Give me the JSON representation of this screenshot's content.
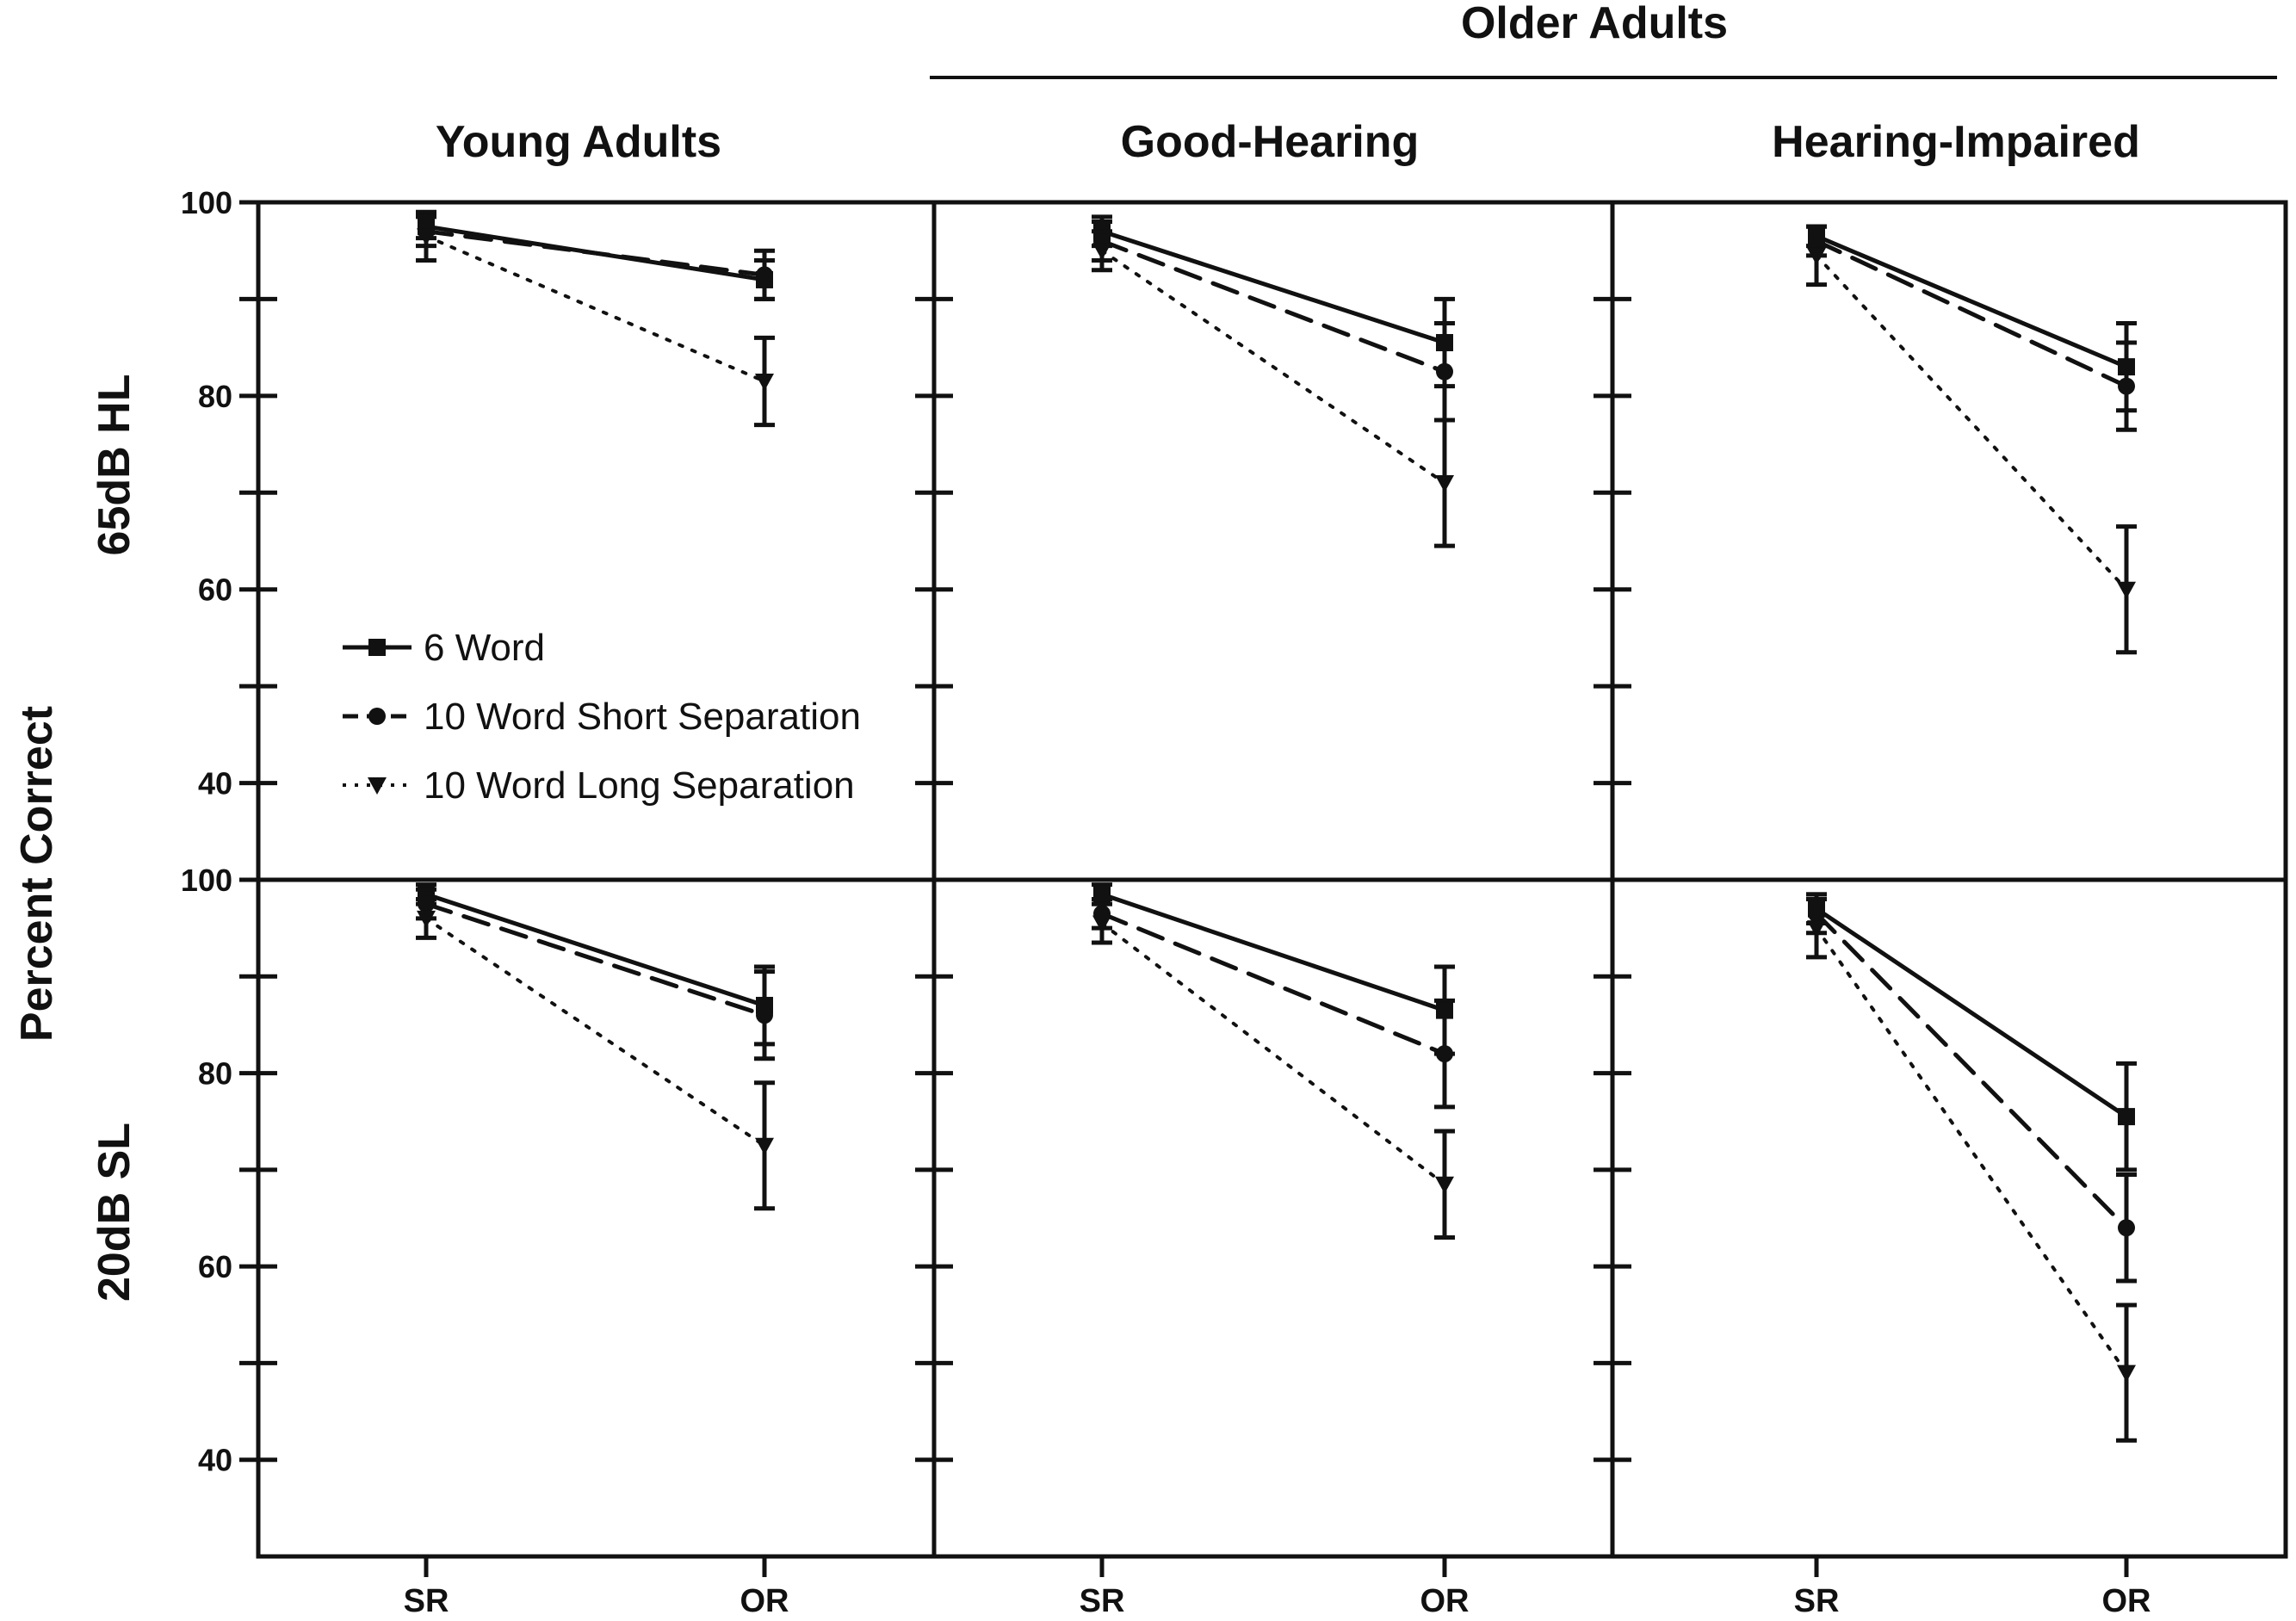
{
  "chart_data": {
    "type": "line",
    "y_axis_label": "Percent Correct",
    "ylim": [
      30,
      100
    ],
    "y_ticks": [
      40,
      60,
      80,
      100
    ],
    "x_categories": [
      "SR",
      "OR"
    ],
    "group_header": "Older Adults",
    "column_titles": [
      "Young Adults",
      "Good-Hearing",
      "Hearing-Impaired"
    ],
    "row_titles": [
      "65dB HL",
      "20dB SL"
    ],
    "legend": {
      "placement": "inside top-left panel, lower-left",
      "entries": [
        "6 Word",
        "10 Word Short Separation",
        "10 Word Long Separation"
      ]
    },
    "series_styles": [
      {
        "name": "6 Word",
        "line": "solid",
        "marker": "square"
      },
      {
        "name": "10 Word Short Separation",
        "line": "dashed",
        "marker": "circle"
      },
      {
        "name": "10 Word Long Separation",
        "line": "dotted",
        "marker": "triangle-down"
      }
    ],
    "panels": [
      {
        "row": "65dB HL",
        "column": "Young Adults",
        "series": [
          {
            "name": "6 Word",
            "values": [
              97.5,
              92.0
            ],
            "errors": [
              1.2,
              2.0
            ]
          },
          {
            "name": "10 Word Short Separation",
            "values": [
              97.0,
              92.5
            ],
            "errors": [
              1.5,
              2.5
            ]
          },
          {
            "name": "10 Word Long Separation",
            "values": [
              96.5,
              81.5
            ],
            "errors": [
              2.5,
              4.5
            ]
          }
        ]
      },
      {
        "row": "65dB HL",
        "column": "Good-Hearing",
        "series": [
          {
            "name": "6 Word",
            "values": [
              97.0,
              85.5
            ],
            "errors": [
              1.5,
              4.5
            ]
          },
          {
            "name": "10 Word Short Separation",
            "values": [
              96.0,
              82.5
            ],
            "errors": [
              2.0,
              5.0
            ]
          },
          {
            "name": "10 Word Long Separation",
            "values": [
              95.0,
              71.0
            ],
            "errors": [
              2.0,
              6.5
            ]
          }
        ]
      },
      {
        "row": "65dB HL",
        "column": "Hearing-Impaired",
        "series": [
          {
            "name": "6 Word",
            "values": [
              96.5,
              83.0
            ],
            "errors": [
              1.0,
              4.5
            ]
          },
          {
            "name": "10 Word Short Separation",
            "values": [
              96.0,
              81.0
            ],
            "errors": [
              1.5,
              4.5
            ]
          },
          {
            "name": "10 Word Long Separation",
            "values": [
              94.5,
              60.0
            ],
            "errors": [
              3.0,
              6.5
            ]
          }
        ]
      },
      {
        "row": "20dB SL",
        "column": "Young Adults",
        "series": [
          {
            "name": "6 Word",
            "values": [
              98.5,
              87.0
            ],
            "errors": [
              1.0,
              4.0
            ]
          },
          {
            "name": "10 Word Short Separation",
            "values": [
              97.5,
              86.0
            ],
            "errors": [
              1.5,
              4.5
            ]
          },
          {
            "name": "10 Word Long Separation",
            "values": [
              96.0,
              72.5
            ],
            "errors": [
              2.0,
              6.5
            ]
          }
        ]
      },
      {
        "row": "20dB SL",
        "column": "Good-Hearing",
        "series": [
          {
            "name": "6 Word",
            "values": [
              98.5,
              86.5
            ],
            "errors": [
              1.0,
              4.5
            ]
          },
          {
            "name": "10 Word Short Separation",
            "values": [
              96.5,
              82.0
            ],
            "errors": [
              1.5,
              5.5
            ]
          },
          {
            "name": "10 Word Long Separation",
            "values": [
              95.5,
              68.5
            ],
            "errors": [
              2.0,
              5.5
            ]
          }
        ]
      },
      {
        "row": "20dB SL",
        "column": "Hearing-Impaired",
        "series": [
          {
            "name": "6 Word",
            "values": [
              97.0,
              75.5
            ],
            "errors": [
              1.5,
              5.5
            ]
          },
          {
            "name": "10 Word Short Separation",
            "values": [
              96.5,
              64.0
            ],
            "errors": [
              2.0,
              5.5
            ]
          },
          {
            "name": "10 Word Long Separation",
            "values": [
              95.0,
              49.0
            ],
            "errors": [
              3.0,
              7.0
            ]
          }
        ]
      }
    ]
  }
}
